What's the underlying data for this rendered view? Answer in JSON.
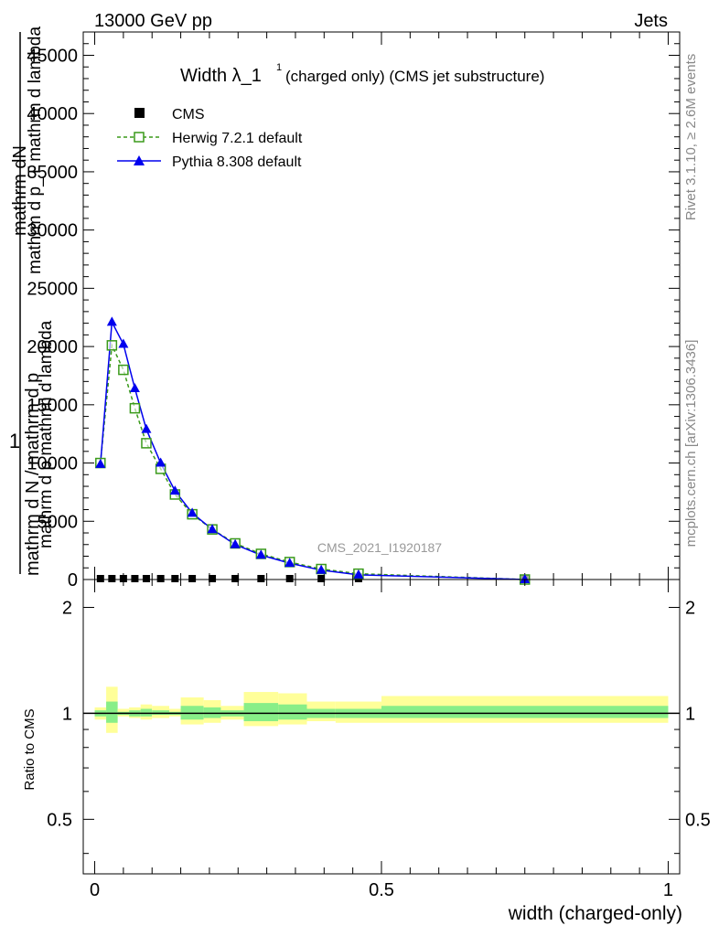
{
  "header": {
    "left": "13000 GeV pp",
    "right": "Jets"
  },
  "side_labels": {
    "rivet": "Rivet 3.1.10, ≥ 2.6M events",
    "mcplots": "mcplots.cern.ch [arXiv:1306.3436]"
  },
  "watermark": "CMS_2021_I1920187",
  "colors": {
    "cms": "#000000",
    "herwig": "#3a9a1a",
    "pythia": "#0000ee",
    "band_outer": "#ffff99",
    "band_inner": "#88ee88"
  },
  "chart_data": [
    {
      "type": "line",
      "title": "Width λ_1¹ (charged only) (CMS jet substructure)",
      "title_main": "Width λ_1",
      "title_sup": "1",
      "title_rest": "(charged only) (CMS jet substructure)",
      "ylabel": "1 / mathrm dN / mathrm d p_T mathrm d²N / mathrm d p_T mathrm d lambda",
      "ylabel_parts": [
        "1",
        "mathrm dN",
        "mathrm d p_T mathrm d lambda",
        "mathrm d²N"
      ],
      "ylabel_mangled_line1": "mathrm d N / mathrm d p",
      "ylabel_mangled_line2": "mathrm d p  mathrm d lambda",
      "ylim": [
        0,
        47000
      ],
      "yticks": [
        0,
        5000,
        10000,
        15000,
        20000,
        25000,
        30000,
        35000,
        40000,
        45000
      ],
      "ytick_labels": [
        "0",
        "5000",
        "10000",
        "15000",
        "20000",
        "25000",
        "30000",
        "35000",
        "40000",
        "45000"
      ],
      "xlim": [
        -0.02,
        1.02
      ],
      "legend": "top-left",
      "series": [
        {
          "name": "CMS",
          "x": [
            0.01,
            0.03,
            0.05,
            0.07,
            0.09,
            0.115,
            0.14,
            0.17,
            0.205,
            0.245,
            0.29,
            0.34,
            0.395,
            0.46,
            0.75
          ],
          "values": [
            0,
            0,
            0,
            0,
            0,
            0,
            0,
            0,
            0,
            0,
            0,
            0,
            0,
            0,
            0
          ]
        },
        {
          "name": "Herwig 7.2.1 default",
          "x": [
            0.01,
            0.03,
            0.05,
            0.07,
            0.09,
            0.115,
            0.14,
            0.17,
            0.205,
            0.245,
            0.29,
            0.34,
            0.395,
            0.46,
            0.75
          ],
          "values": [
            10000,
            20100,
            18000,
            14700,
            11700,
            9500,
            7300,
            5600,
            4300,
            3100,
            2200,
            1500,
            900,
            500,
            0
          ]
        },
        {
          "name": "Pythia 8.308 default",
          "x": [
            0.01,
            0.03,
            0.05,
            0.07,
            0.09,
            0.115,
            0.14,
            0.17,
            0.205,
            0.245,
            0.29,
            0.34,
            0.395,
            0.46,
            0.75
          ],
          "values": [
            9900,
            22100,
            20200,
            16400,
            12900,
            10000,
            7600,
            5700,
            4300,
            3000,
            2100,
            1400,
            800,
            400,
            0
          ]
        }
      ]
    },
    {
      "type": "area",
      "ylabel": "Ratio to CMS",
      "xlabel": "width (charged-only)",
      "xlim": [
        -0.02,
        1.02
      ],
      "ylim": [
        0.35,
        2.4
      ],
      "log_y": true,
      "yticks": [
        0.5,
        1,
        2
      ],
      "ytick_labels": [
        "0.5",
        "1",
        "2"
      ],
      "xticks": [
        0,
        0.5,
        1
      ],
      "xtick_labels": [
        "0",
        "0.5",
        "1"
      ],
      "reference": 1,
      "bands": {
        "edges": [
          0.0,
          0.02,
          0.04,
          0.06,
          0.08,
          0.1,
          0.13,
          0.15,
          0.19,
          0.22,
          0.26,
          0.32,
          0.37,
          0.42,
          0.5,
          1.0
        ],
        "outer_lo": [
          0.96,
          0.88,
          0.98,
          0.97,
          0.96,
          0.97,
          0.98,
          0.93,
          0.94,
          0.96,
          0.92,
          0.93,
          0.95,
          0.94,
          0.94
        ],
        "outer_hi": [
          1.04,
          1.19,
          1.03,
          1.04,
          1.06,
          1.05,
          1.03,
          1.11,
          1.09,
          1.05,
          1.15,
          1.14,
          1.08,
          1.08,
          1.12
        ],
        "inner_lo": [
          0.98,
          0.94,
          0.99,
          0.98,
          0.98,
          0.99,
          0.99,
          0.96,
          0.97,
          0.98,
          0.95,
          0.96,
          0.97,
          0.97,
          0.97
        ],
        "inner_hi": [
          1.02,
          1.08,
          1.01,
          1.02,
          1.03,
          1.02,
          1.01,
          1.05,
          1.04,
          1.02,
          1.07,
          1.06,
          1.03,
          1.03,
          1.05
        ]
      }
    }
  ]
}
